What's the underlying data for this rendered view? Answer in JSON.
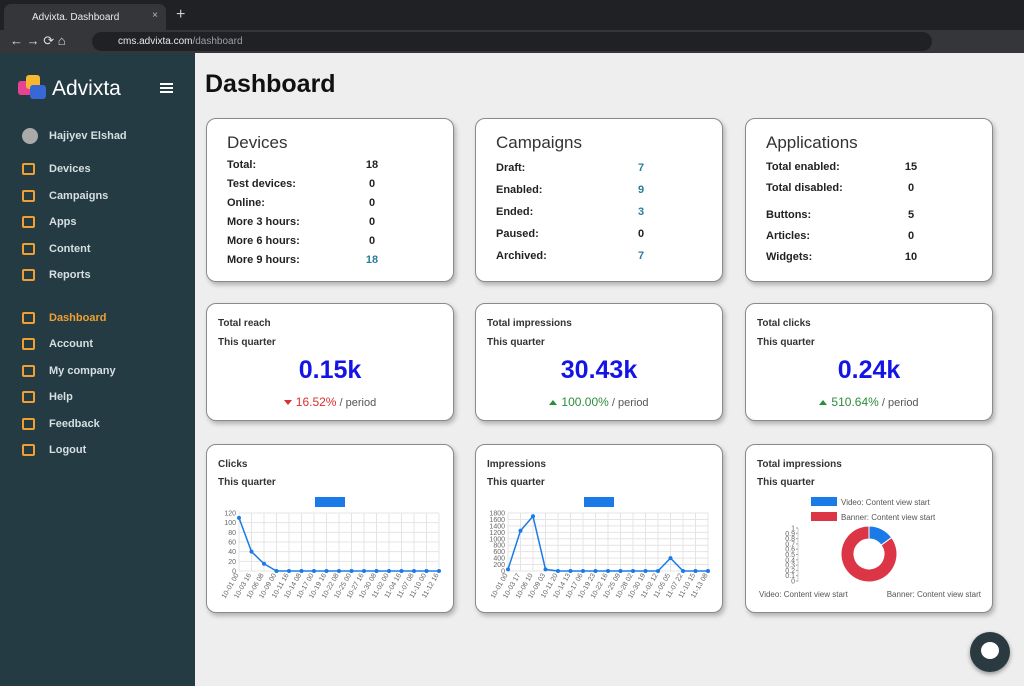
{
  "browser": {
    "tab_title": "Advixta. Dashboard",
    "url_host": "cms.advixta.com",
    "url_path": "/dashboard"
  },
  "sidebar": {
    "brand": "Advixta",
    "user": "Hajiyev Elshad",
    "menu_groups": [
      [
        "Devices",
        "Campaigns",
        "Apps",
        "Content",
        "Reports"
      ],
      [
        "Dashboard",
        "Account",
        "My company",
        "Help",
        "Feedback",
        "Logout"
      ]
    ],
    "active": "Dashboard"
  },
  "page_title": "Dashboard",
  "summary": [
    {
      "title": "Devices",
      "groups": [
        [
          {
            "label": "Total:",
            "value": 18
          },
          {
            "label": "Test devices:",
            "value": 0
          },
          {
            "label": "Online:",
            "value": 0
          },
          {
            "label": "More 3 hours:",
            "value": 0
          },
          {
            "label": "More 6 hours:",
            "value": 0
          },
          {
            "label": "More 9 hours:",
            "value": 18,
            "link": true
          }
        ]
      ]
    },
    {
      "title": "Campaigns",
      "groups": [
        [
          {
            "label": "Draft:",
            "value": 7,
            "link": true
          },
          {
            "label": "Enabled:",
            "value": 9,
            "link": true
          },
          {
            "label": "Ended:",
            "value": 3,
            "link": true
          },
          {
            "label": "Paused:",
            "value": 0
          },
          {
            "label": "Archived:",
            "value": 7,
            "link": true
          }
        ]
      ]
    },
    {
      "title": "Applications",
      "groups": [
        [
          {
            "label": "Total enabled:",
            "value": 15
          },
          {
            "label": "Total disabled:",
            "value": 0
          }
        ],
        [
          {
            "label": "Buttons:",
            "value": 5
          },
          {
            "label": "Articles:",
            "value": 0
          },
          {
            "label": "Widgets:",
            "value": 10
          }
        ]
      ]
    }
  ],
  "stats": [
    {
      "title": "Total reach",
      "period": "This quarter",
      "value": "0.15k",
      "change": "16.52%",
      "direction": "down",
      "suffix": "/ period"
    },
    {
      "title": "Total impressions",
      "period": "This quarter",
      "value": "30.43k",
      "change": "100.00%",
      "direction": "up",
      "suffix": "/ period"
    },
    {
      "title": "Total clicks",
      "period": "This quarter",
      "value": "0.24k",
      "change": "510.64%",
      "direction": "up",
      "suffix": "/ period"
    }
  ],
  "charts": [
    {
      "type": "line",
      "title": "Clicks",
      "subtitle": "This quarter",
      "color": "#1a7be8",
      "grid": true,
      "categories": [
        "10-01 00",
        "10-03 16",
        "10-06 08",
        "10-09 00",
        "10-11 16",
        "10-14 08",
        "10-17 00",
        "10-19 16",
        "10-22 08",
        "10-25 00",
        "10-27 16",
        "10-30 08",
        "11-02 00",
        "11-04 16",
        "11-07 08",
        "11-10 00",
        "11-12 16"
      ],
      "values": [
        110,
        40,
        15,
        0,
        0,
        0,
        0,
        0,
        0,
        0,
        0,
        0,
        0,
        0,
        0,
        0,
        0
      ],
      "ylim": [
        0,
        120
      ],
      "yticks": [
        0,
        20,
        40,
        60,
        80,
        100,
        120
      ]
    },
    {
      "type": "line",
      "title": "Impressions",
      "subtitle": "This quarter",
      "color": "#1a7be8",
      "grid": true,
      "categories": [
        "10-01 00",
        "10-03 17",
        "10-06 10",
        "10-09 03",
        "10-11 20",
        "10-14 13",
        "10-17 06",
        "10-19 23",
        "10-22 16",
        "10-25 09",
        "10-28 02",
        "10-30 19",
        "11-02 12",
        "11-05 05",
        "11-07 22",
        "11-10 15",
        "11-13 08"
      ],
      "values": [
        50,
        1250,
        1700,
        50,
        0,
        0,
        0,
        0,
        0,
        0,
        0,
        0,
        0,
        400,
        0,
        0,
        0
      ],
      "ylim": [
        0,
        1800
      ],
      "yticks": [
        0,
        200,
        400,
        600,
        800,
        1000,
        1200,
        1400,
        1600,
        1800
      ]
    },
    {
      "type": "doughnut",
      "title": "Total impressions",
      "subtitle": "This quarter",
      "categories": [
        "Video: Content view start",
        "Banner: Content view start"
      ],
      "values": [
        15,
        85
      ],
      "colors": [
        "#1a7be8",
        "#dc3545"
      ],
      "ylim": [
        0,
        1
      ],
      "yticks": [
        0,
        0.1,
        0.2,
        0.3,
        0.4,
        0.5,
        0.6,
        0.7,
        0.8,
        0.9,
        1
      ]
    }
  ]
}
